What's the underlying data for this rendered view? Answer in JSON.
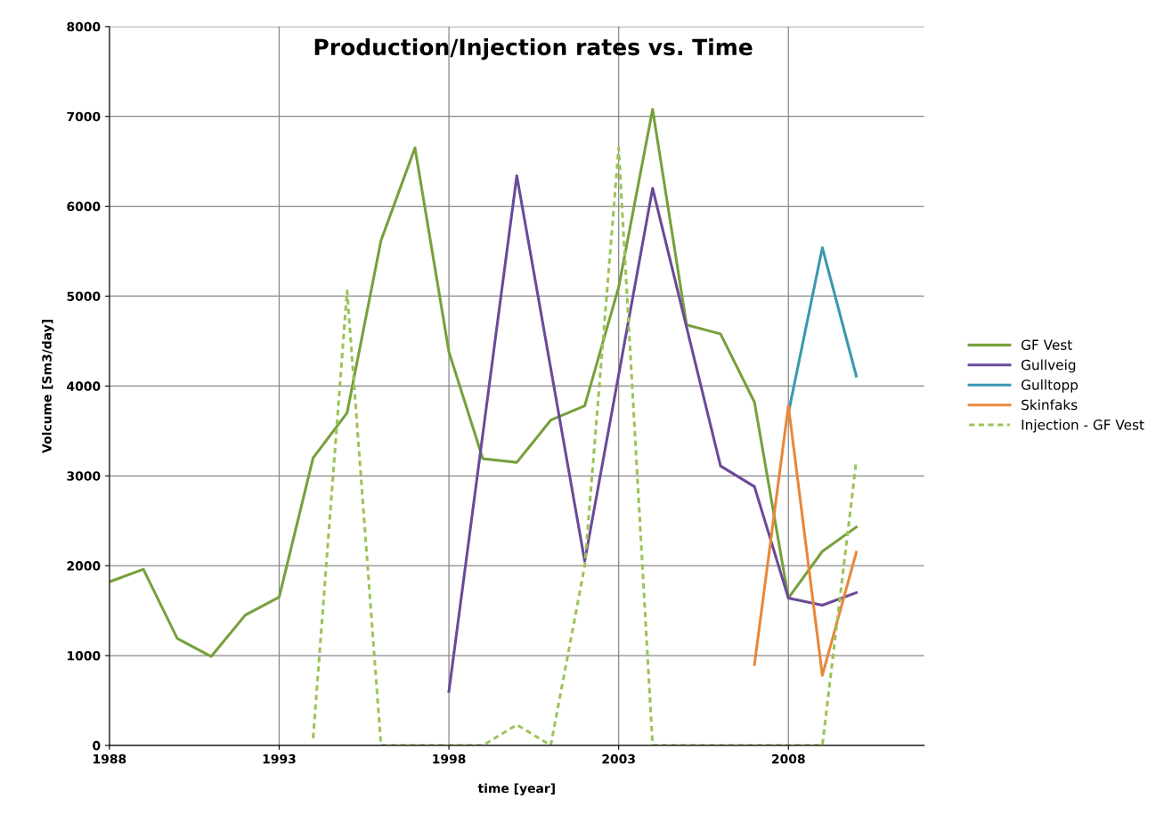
{
  "chart_data": {
    "type": "line",
    "title": "Production/Injection rates vs. Time",
    "xlabel": "time [year]",
    "ylabel": "Volcume [Sm3/day]",
    "xlim": [
      1988,
      2012
    ],
    "xticks": [
      1988,
      1993,
      1998,
      2003,
      2008
    ],
    "ylim": [
      0,
      8000
    ],
    "yticks": [
      0,
      1000,
      2000,
      3000,
      4000,
      5000,
      6000,
      7000,
      8000
    ],
    "grid": true,
    "legend": "right",
    "marker": "none",
    "series": [
      {
        "name": "GF Vest",
        "color": "#77a03c",
        "line_style": "solid",
        "x": [
          1988,
          1989,
          1990,
          1991,
          1992,
          1993,
          1994,
          1995,
          1996,
          1997,
          1998,
          1999,
          2000,
          2001,
          2002,
          2003,
          2004,
          2005,
          2006,
          2007,
          2008,
          2009,
          2010
        ],
        "values": [
          1820,
          1960,
          1190,
          990,
          1450,
          1650,
          3200,
          3700,
          5620,
          6650,
          4380,
          3190,
          3150,
          3620,
          3780,
          5100,
          7080,
          4680,
          4580,
          3820,
          1640,
          2160,
          2430
        ]
      },
      {
        "name": "Gullveig",
        "color": "#6a4a98",
        "line_style": "solid",
        "x": [
          1998,
          2000,
          2002,
          2004,
          2006,
          2007,
          2008,
          2009,
          2010
        ],
        "values": [
          600,
          6340,
          2050,
          6200,
          3110,
          2880,
          1640,
          1560,
          1700
        ]
      },
      {
        "name": "Gulltopp",
        "color": "#3a98b0",
        "line_style": "solid",
        "x": [
          2008,
          2009,
          2010
        ],
        "values": [
          3700,
          5540,
          4110
        ]
      },
      {
        "name": "Skinfaks",
        "color": "#e8873a",
        "line_style": "solid",
        "x": [
          2007,
          2008,
          2009,
          2010
        ],
        "values": [
          900,
          3780,
          780,
          2150
        ]
      },
      {
        "name": "Injection - GF Vest",
        "color": "#9bc45a",
        "line_style": "dashed",
        "x": [
          1994,
          1995,
          1996,
          1997,
          1998,
          1999,
          2000,
          2001,
          2002,
          2003,
          2004,
          2005,
          2006,
          2007,
          2008,
          2009,
          2010
        ],
        "values": [
          80,
          5060,
          0,
          0,
          0,
          0,
          230,
          0,
          2000,
          6650,
          0,
          0,
          0,
          0,
          0,
          0,
          3170
        ]
      }
    ]
  }
}
